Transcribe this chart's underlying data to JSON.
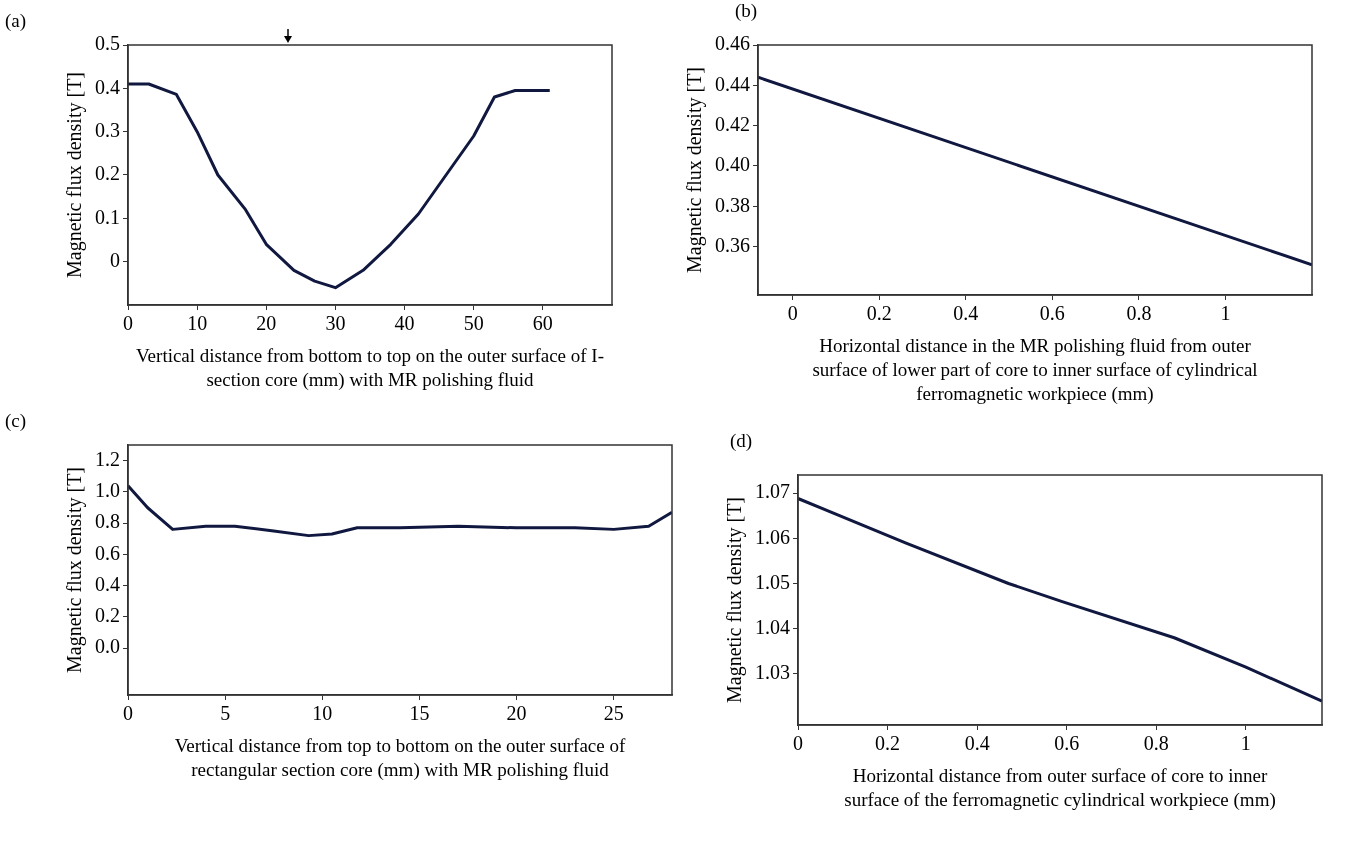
{
  "chart_data": [
    {
      "type": "line",
      "xlabel": "Vertical distance from bottom to top on the outer surface of I-section core (mm) with MR polishing fluid",
      "ylabel": "Magnetic flux density [T]",
      "annotations": [
        "(a)"
      ],
      "marker": "none",
      "x": [
        0,
        3,
        7,
        10,
        13,
        17,
        20,
        24,
        27,
        30,
        34,
        38,
        42,
        46,
        50,
        53,
        56,
        61
      ],
      "series": [
        {
          "color": "#101840",
          "values": [
            0.41,
            0.41,
            0.386,
            0.3,
            0.2,
            0.12,
            0.04,
            -0.02,
            -0.045,
            -0.06,
            -0.02,
            0.04,
            0.11,
            0.2,
            0.29,
            0.38,
            0.395,
            0.395
          ]
        }
      ],
      "xlim": [
        0,
        70
      ],
      "xticks": [
        0,
        10,
        20,
        30,
        40,
        50,
        60
      ],
      "ylim": [
        -0.1,
        0.5
      ],
      "yticks": [
        0,
        0.1,
        0.2,
        0.3,
        0.4,
        0.5
      ]
    },
    {
      "type": "line",
      "xlabel": "Horizontal distance in the MR polishing fluid from outer surface of lower part of core to inner surface of cylindrical ferromagnetic workpiece (mm)",
      "ylabel": "Magnetic flux density [T]",
      "annotations": [
        "(b)"
      ],
      "marker": "none",
      "x": [
        -0.08,
        1.2
      ],
      "series": [
        {
          "color": "#101840",
          "values": [
            0.444,
            0.351
          ]
        }
      ],
      "xlim": [
        -0.08,
        1.2
      ],
      "xticks": [
        0,
        0.2,
        0.4,
        0.6,
        0.8,
        1
      ],
      "ylim": [
        0.336,
        0.46
      ],
      "yticks": [
        {
          "value": 0.36,
          "label": "0.36"
        },
        {
          "value": 0.38,
          "label": "0.38"
        },
        {
          "value": 0.4,
          "label": "0.40"
        },
        {
          "value": 0.42,
          "label": "0.42"
        },
        {
          "value": 0.44,
          "label": "0.44"
        },
        {
          "value": 0.46,
          "label": "0.46"
        }
      ]
    },
    {
      "type": "line",
      "xlabel": "Vertical distance from top to bottom on the outer surface of rectangular section core (mm) with MR polishing fluid",
      "ylabel": "Magnetic flux density [T]",
      "annotations": [
        "(c)"
      ],
      "marker": "none",
      "x": [
        0,
        1,
        2.3,
        4,
        5.5,
        7.5,
        9.3,
        10.5,
        11.8,
        14,
        17,
        20,
        23,
        25,
        26.8,
        28
      ],
      "series": [
        {
          "color": "#101840",
          "values": [
            1.04,
            0.9,
            0.76,
            0.78,
            0.78,
            0.75,
            0.72,
            0.73,
            0.77,
            0.77,
            0.78,
            0.77,
            0.77,
            0.76,
            0.78,
            0.87
          ]
        }
      ],
      "xlim": [
        0,
        28
      ],
      "xticks": [
        0,
        5,
        10,
        15,
        20,
        25
      ],
      "ylim": [
        -0.3,
        1.3
      ],
      "yticks": [
        {
          "value": 0,
          "label": "0.0"
        },
        0.2,
        0.4,
        0.6,
        0.8,
        {
          "value": 1,
          "label": "1.0"
        },
        1.2
      ]
    },
    {
      "type": "line",
      "xlabel": "Horizontal distance from outer surface of core to inner surface of the ferromagnetic cylindrical workpiece (mm)",
      "ylabel": "Magnetic flux density [T]",
      "annotations": [
        "(d)"
      ],
      "marker": "none",
      "x": [
        0,
        0.24,
        0.47,
        0.59,
        0.84,
        1.0,
        1.17
      ],
      "series": [
        {
          "color": "#101840",
          "values": [
            1.0688,
            1.059,
            1.05,
            1.046,
            1.038,
            1.0315,
            1.024
          ]
        }
      ],
      "xlim": [
        0,
        1.17
      ],
      "xticks": [
        0,
        0.2,
        0.4,
        0.6,
        0.8,
        1
      ],
      "ylim": [
        1.0187,
        1.074
      ],
      "yticks": [
        1.03,
        1.04,
        1.05,
        1.06,
        1.07
      ]
    }
  ]
}
